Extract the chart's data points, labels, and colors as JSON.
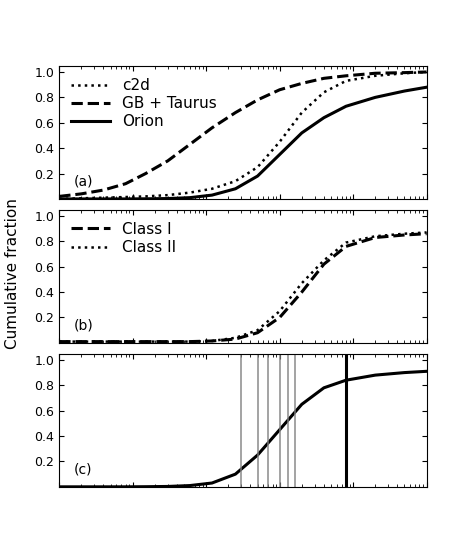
{
  "title": "",
  "ylabel": "Cumulative fraction",
  "xlabel": "",
  "xlim_log": [
    -1,
    4
  ],
  "ylim": [
    0.0,
    1.05
  ],
  "panel_labels": [
    "(a)",
    "(b)",
    "(c)"
  ],
  "panel_a": {
    "curves": [
      {
        "label": "c2d",
        "style": "dotted",
        "lw": 1.8,
        "color": "#000000",
        "x": [
          0.1,
          0.2,
          0.4,
          0.8,
          1.5,
          3,
          6,
          12,
          25,
          50,
          100,
          200,
          400,
          800,
          2000,
          5000,
          10000
        ],
        "y": [
          0.0,
          0.005,
          0.01,
          0.015,
          0.02,
          0.03,
          0.05,
          0.08,
          0.14,
          0.25,
          0.45,
          0.68,
          0.84,
          0.93,
          0.97,
          0.99,
          1.0
        ]
      },
      {
        "label": "GB + Taurus",
        "style": "dashed",
        "lw": 2.2,
        "color": "#000000",
        "x": [
          0.1,
          0.2,
          0.4,
          0.8,
          1.5,
          3,
          6,
          12,
          25,
          50,
          100,
          200,
          400,
          800,
          2000,
          5000,
          10000
        ],
        "y": [
          0.02,
          0.04,
          0.07,
          0.12,
          0.2,
          0.3,
          0.43,
          0.56,
          0.68,
          0.78,
          0.86,
          0.91,
          0.95,
          0.97,
          0.99,
          0.995,
          1.0
        ]
      },
      {
        "label": "Orion",
        "style": "solid",
        "lw": 2.2,
        "color": "#000000",
        "x": [
          0.1,
          0.2,
          0.4,
          0.8,
          1.5,
          3,
          6,
          12,
          25,
          50,
          100,
          200,
          400,
          800,
          2000,
          5000,
          10000
        ],
        "y": [
          0.0,
          0.0,
          0.0,
          0.0,
          0.001,
          0.003,
          0.01,
          0.03,
          0.08,
          0.18,
          0.35,
          0.52,
          0.64,
          0.73,
          0.8,
          0.85,
          0.88
        ]
      }
    ]
  },
  "panel_b": {
    "curves": [
      {
        "label": "Class I",
        "style": "dashed",
        "lw": 2.2,
        "color": "#000000",
        "x": [
          0.1,
          0.5,
          1,
          3,
          6,
          12,
          25,
          50,
          100,
          200,
          400,
          800,
          2000,
          5000,
          10000
        ],
        "y": [
          0.01,
          0.01,
          0.01,
          0.01,
          0.01,
          0.015,
          0.03,
          0.08,
          0.2,
          0.4,
          0.62,
          0.76,
          0.83,
          0.85,
          0.86
        ]
      },
      {
        "label": "Class II",
        "style": "dotted",
        "lw": 1.8,
        "color": "#000000",
        "x": [
          0.1,
          0.5,
          1,
          3,
          6,
          12,
          25,
          50,
          100,
          200,
          400,
          800,
          2000,
          5000,
          10000
        ],
        "y": [
          0.01,
          0.01,
          0.01,
          0.01,
          0.01,
          0.015,
          0.04,
          0.1,
          0.25,
          0.47,
          0.65,
          0.79,
          0.84,
          0.86,
          0.87
        ]
      }
    ]
  },
  "panel_c": {
    "curve": {
      "x": [
        0.1,
        0.2,
        0.4,
        0.8,
        1.5,
        3,
        6,
        12,
        25,
        50,
        100,
        200,
        400,
        800,
        2000,
        5000,
        10000
      ],
      "y": [
        0.0,
        0.0,
        0.0,
        0.0,
        0.001,
        0.003,
        0.01,
        0.03,
        0.1,
        0.25,
        0.45,
        0.65,
        0.78,
        0.84,
        0.88,
        0.9,
        0.91
      ]
    },
    "gray_vlines": [
      30,
      50,
      70,
      100,
      130,
      160
    ],
    "black_vline": 800
  },
  "background_color": "#ffffff",
  "legend_fontsize": 11,
  "label_fontsize": 11
}
